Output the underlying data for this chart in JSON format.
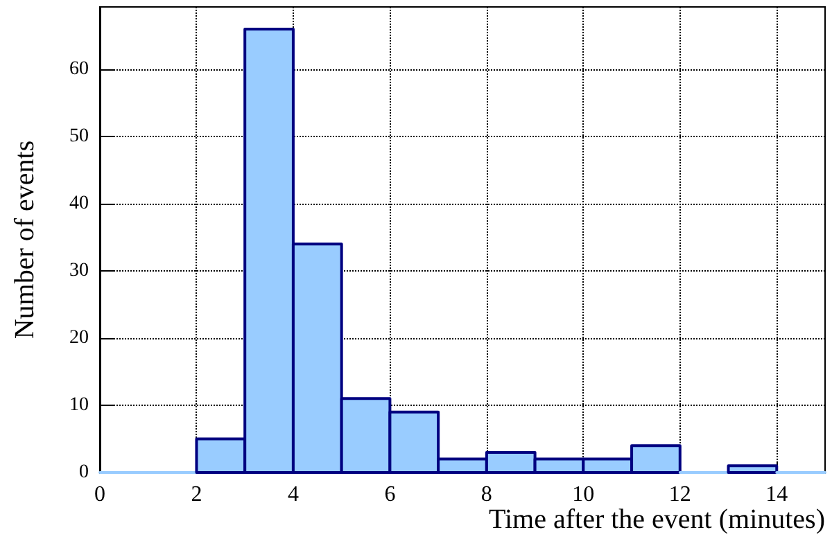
{
  "chart_data": {
    "type": "histogram",
    "xlabel": "Time after the event (minutes)",
    "ylabel": "Number of events",
    "bins": [
      0,
      1,
      2,
      3,
      4,
      5,
      6,
      7,
      8,
      9,
      10,
      11,
      12,
      13,
      14,
      15
    ],
    "values": [
      0,
      0,
      5,
      66,
      34,
      11,
      9,
      2,
      3,
      2,
      2,
      4,
      0,
      1,
      0
    ],
    "color": "#99ccff",
    "xlim": [
      0,
      15
    ],
    "xticks": [
      0,
      2,
      4,
      6,
      8,
      10,
      12,
      14
    ],
    "ylim": [
      0,
      69.3
    ],
    "yticks": [
      0,
      10,
      20,
      30,
      40,
      50,
      60
    ],
    "grid": true
  }
}
